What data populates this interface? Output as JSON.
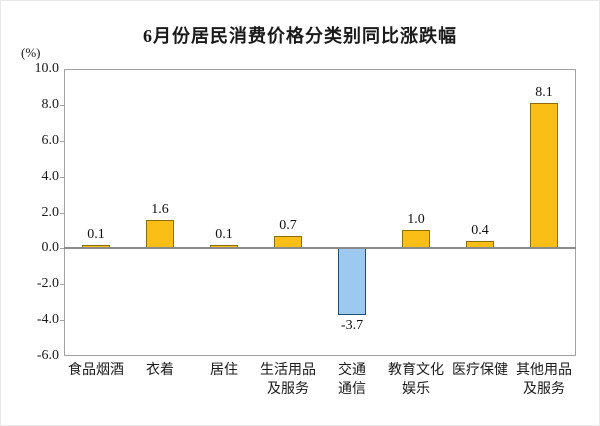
{
  "chart_data": {
    "type": "bar",
    "title": "6月份居民消费价格分类别同比涨跌幅",
    "unit_label": "(%)",
    "categories": [
      "食品烟酒",
      "衣着",
      "居住",
      "生活用品及服务",
      "交通通信",
      "教育文化娱乐",
      "医疗保健",
      "其他用品及服务"
    ],
    "category_label_lines": [
      [
        "食品烟酒"
      ],
      [
        "衣着"
      ],
      [
        "居住"
      ],
      [
        "生活用品",
        "及服务"
      ],
      [
        "交通",
        "通信"
      ],
      [
        "教育文化",
        "娱乐"
      ],
      [
        "医疗保健"
      ],
      [
        "其他用品",
        "及服务"
      ]
    ],
    "values": [
      0.1,
      1.6,
      0.1,
      0.7,
      -3.7,
      1.0,
      0.4,
      8.1
    ],
    "value_labels": [
      "0.1",
      "1.6",
      "0.1",
      "0.7",
      "-3.7",
      "1.0",
      "0.4",
      "8.1"
    ],
    "xlabel": "",
    "ylabel": "(%)",
    "ylim": [
      -6.0,
      10.0
    ],
    "y_tick_step": 2.0,
    "y_tick_labels": [
      "10.0",
      "8.0",
      "6.0",
      "4.0",
      "2.0",
      "0.0",
      "-2.0",
      "-4.0",
      "-6.0"
    ],
    "grid": false,
    "legend": null,
    "colors": {
      "positive_fill": "#FBBE17",
      "positive_stroke": "#8f6c0a",
      "negative_fill": "#9DC9F0",
      "negative_stroke": "#1F4E79",
      "axis": "#a3a3a3",
      "zero_line": "#8a8a8a",
      "text": "#1a1a1a"
    }
  }
}
